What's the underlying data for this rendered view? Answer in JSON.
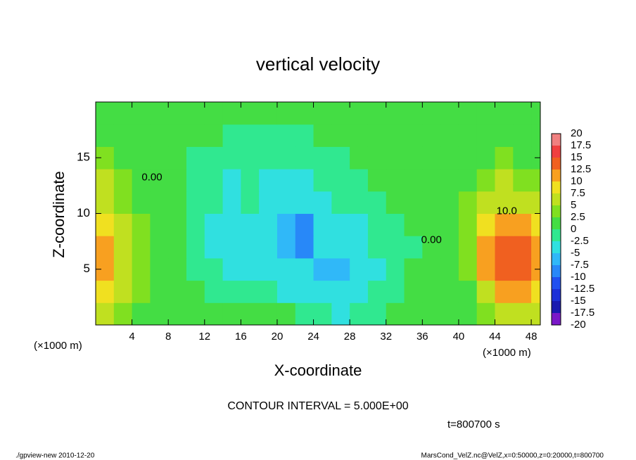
{
  "chart_data": {
    "type": "heatmap",
    "title": "vertical velocity",
    "xlabel": "X-coordinate",
    "ylabel": "Z-coordinate",
    "x_unit": "(×1000 m)",
    "contour_interval": "CONTOUR INTERVAL = 5.000E+00",
    "time_label": "t=800700 s",
    "footer_left": "./gpview-new  2010-12-20",
    "footer_right": "MarsCond_VelZ.nc@VelZ,x=0:50000,z=0:20000,t=800700",
    "xlim": [
      0,
      49
    ],
    "ylim": [
      0,
      20
    ],
    "xticks": [
      4,
      8,
      12,
      16,
      20,
      24,
      28,
      32,
      36,
      40,
      44,
      48
    ],
    "yticks": [
      5,
      10,
      15
    ],
    "x": [
      1,
      3,
      5,
      7,
      9,
      11,
      13,
      15,
      17,
      19,
      21,
      23,
      25,
      27,
      29,
      31,
      33,
      35,
      37,
      39,
      41,
      43,
      45,
      47,
      49
    ],
    "y": [
      1,
      3,
      5,
      7,
      9,
      11,
      13,
      15,
      17,
      19
    ],
    "z": [
      [
        6,
        4,
        2,
        0,
        0,
        0,
        0,
        0,
        0,
        0,
        0,
        -1,
        -2,
        -3,
        -2,
        -1,
        0,
        0,
        0,
        0,
        0,
        3,
        6,
        7,
        6
      ],
      [
        9,
        6,
        3,
        1,
        0,
        0,
        -1,
        -1,
        -1,
        -2,
        -3,
        -4,
        -5,
        -5,
        -4,
        -2,
        -1,
        0,
        0,
        0,
        2,
        6,
        10,
        11,
        9
      ],
      [
        11,
        7,
        3,
        1,
        0,
        -1,
        -2,
        -3,
        -3,
        -4,
        -5,
        -5,
        -6,
        -6,
        -5,
        -3,
        -1,
        0,
        0,
        0,
        3,
        10,
        13,
        14,
        11
      ],
      [
        10,
        7,
        3,
        1,
        0,
        -1,
        -3,
        -4,
        -4,
        -5,
        -6,
        -8,
        -5,
        -4,
        -4,
        -2,
        -1,
        -1,
        0,
        0,
        4,
        11,
        14,
        14,
        12
      ],
      [
        8,
        6,
        3,
        1,
        0,
        -1,
        -3,
        -4,
        -3,
        -5,
        -7,
        -8,
        -4,
        -3,
        -3,
        -2,
        -1,
        0,
        0,
        0,
        4,
        9,
        11,
        11,
        9
      ],
      [
        6,
        4,
        2,
        1,
        0,
        -1,
        -2,
        -3,
        -2,
        -4,
        -5,
        -5,
        -3,
        -2,
        -1,
        -1,
        0,
        0,
        0,
        0,
        3,
        6,
        7,
        7,
        6
      ],
      [
        5,
        3,
        2,
        1,
        0,
        -1,
        -2,
        -3,
        -2,
        -3,
        -4,
        -3,
        -2,
        -1,
        -1,
        0,
        0,
        0,
        0,
        0,
        2,
        4,
        5,
        4,
        3
      ],
      [
        3,
        2,
        1,
        0,
        0,
        -1,
        -1,
        -1,
        -1,
        -2,
        -2,
        -1,
        -1,
        -1,
        0,
        0,
        0,
        0,
        0,
        0,
        1,
        2,
        3,
        2,
        2
      ],
      [
        1,
        1,
        0,
        0,
        0,
        0,
        0,
        -1,
        -1,
        -1,
        -1,
        -1,
        0,
        0,
        0,
        0,
        0,
        0,
        0,
        0,
        1,
        1,
        1,
        1,
        1
      ],
      [
        0,
        0,
        0,
        0,
        0,
        0,
        0,
        0,
        0,
        0,
        0,
        0,
        0,
        0,
        0,
        0,
        0,
        0,
        0,
        0,
        0,
        0,
        0,
        0,
        0
      ]
    ],
    "levels": [
      -20,
      -17.5,
      -15,
      -12.5,
      -10,
      -7.5,
      -5,
      -2.5,
      0,
      2.5,
      5,
      7.5,
      10,
      12.5,
      15,
      17.5,
      20
    ],
    "colors": [
      "#7a18c8",
      "#1a1ab0",
      "#1c30d8",
      "#2050f0",
      "#2888f8",
      "#30b8f8",
      "#30e0e0",
      "#30e890",
      "#44dd44",
      "#80e020",
      "#c0e020",
      "#f0e020",
      "#f8a020",
      "#f06020",
      "#f04040",
      "#f08080"
    ],
    "contour_labels": [
      {
        "label": "0.00",
        "x": 6.2,
        "y": 13.2
      },
      {
        "label": "0.00",
        "x": 37,
        "y": 7.6
      },
      {
        "label": "10.0",
        "x": 45.3,
        "y": 10.2
      }
    ]
  }
}
